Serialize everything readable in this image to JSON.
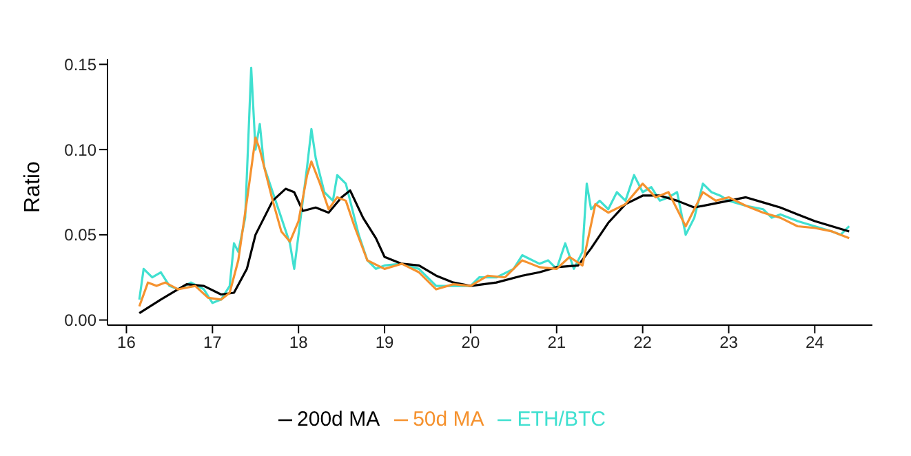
{
  "chart_data": {
    "type": "line",
    "ylabel": "Ratio",
    "xlim": [
      15.78,
      24.67
    ],
    "xticks": [
      16,
      17,
      18,
      19,
      20,
      21,
      22,
      23,
      24
    ],
    "ylim": [
      -0.003,
      0.153
    ],
    "yticks": [
      {
        "value": 0,
        "label": "0.00"
      },
      {
        "value": 0.05,
        "label": "0.05"
      },
      {
        "value": 0.1,
        "label": "0.10"
      },
      {
        "value": 0.15,
        "label": "0.15"
      }
    ],
    "grid": false,
    "legend": "bottom",
    "marker": "none",
    "line_style": "solid",
    "series": [
      {
        "name": "ETH/BTC",
        "color": "#40e0d0",
        "x": [
          16.15,
          16.2,
          16.3,
          16.4,
          16.5,
          16.6,
          16.75,
          16.9,
          17.0,
          17.1,
          17.2,
          17.25,
          17.3,
          17.38,
          17.45,
          17.5,
          17.55,
          17.6,
          17.7,
          17.8,
          17.9,
          17.95,
          18.0,
          18.1,
          18.15,
          18.2,
          18.3,
          18.4,
          18.45,
          18.55,
          18.6,
          18.7,
          18.8,
          18.9,
          19.0,
          19.2,
          19.4,
          19.6,
          19.8,
          20.0,
          20.1,
          20.3,
          20.5,
          20.6,
          20.8,
          20.9,
          21.0,
          21.1,
          21.2,
          21.3,
          21.35,
          21.4,
          21.5,
          21.6,
          21.7,
          21.8,
          21.9,
          22.0,
          22.1,
          22.2,
          22.3,
          22.4,
          22.5,
          22.6,
          22.7,
          22.8,
          22.9,
          23.0,
          23.2,
          23.4,
          23.5,
          23.6,
          23.8,
          24.0,
          24.2,
          24.3,
          24.4
        ],
        "values": [
          0.012,
          0.03,
          0.025,
          0.028,
          0.02,
          0.018,
          0.022,
          0.018,
          0.01,
          0.012,
          0.02,
          0.045,
          0.04,
          0.06,
          0.148,
          0.1,
          0.115,
          0.09,
          0.075,
          0.06,
          0.045,
          0.03,
          0.05,
          0.09,
          0.112,
          0.095,
          0.075,
          0.07,
          0.085,
          0.08,
          0.07,
          0.05,
          0.035,
          0.03,
          0.032,
          0.033,
          0.03,
          0.02,
          0.02,
          0.02,
          0.025,
          0.025,
          0.03,
          0.038,
          0.033,
          0.035,
          0.03,
          0.045,
          0.03,
          0.04,
          0.08,
          0.065,
          0.07,
          0.065,
          0.075,
          0.07,
          0.085,
          0.075,
          0.078,
          0.07,
          0.072,
          0.075,
          0.05,
          0.06,
          0.08,
          0.075,
          0.073,
          0.07,
          0.067,
          0.065,
          0.06,
          0.062,
          0.058,
          0.055,
          0.052,
          0.05,
          0.055
        ]
      },
      {
        "name": "200d MA",
        "color": "#000000",
        "x": [
          16.15,
          16.4,
          16.7,
          16.9,
          17.1,
          17.25,
          17.4,
          17.5,
          17.7,
          17.85,
          17.95,
          18.05,
          18.2,
          18.35,
          18.5,
          18.6,
          18.75,
          18.9,
          19.0,
          19.2,
          19.4,
          19.6,
          19.8,
          20.0,
          20.3,
          20.6,
          20.8,
          21.0,
          21.25,
          21.4,
          21.6,
          21.8,
          22.0,
          22.2,
          22.4,
          22.6,
          22.8,
          23.0,
          23.2,
          23.4,
          23.6,
          23.8,
          24.0,
          24.2,
          24.4
        ],
        "values": [
          0.004,
          0.012,
          0.021,
          0.02,
          0.015,
          0.016,
          0.03,
          0.05,
          0.07,
          0.077,
          0.075,
          0.064,
          0.066,
          0.063,
          0.072,
          0.076,
          0.06,
          0.048,
          0.037,
          0.033,
          0.032,
          0.026,
          0.022,
          0.02,
          0.022,
          0.026,
          0.028,
          0.031,
          0.032,
          0.042,
          0.057,
          0.068,
          0.073,
          0.073,
          0.07,
          0.066,
          0.068,
          0.07,
          0.072,
          0.069,
          0.066,
          0.062,
          0.058,
          0.055,
          0.052
        ]
      },
      {
        "name": "50d MA",
        "color": "#f5922f",
        "x": [
          16.15,
          16.25,
          16.35,
          16.45,
          16.6,
          16.8,
          16.95,
          17.1,
          17.2,
          17.3,
          17.4,
          17.5,
          17.55,
          17.7,
          17.8,
          17.9,
          18.0,
          18.1,
          18.15,
          18.25,
          18.35,
          18.45,
          18.55,
          18.65,
          18.8,
          19.0,
          19.2,
          19.4,
          19.6,
          19.8,
          20.0,
          20.2,
          20.4,
          20.6,
          20.8,
          21.0,
          21.15,
          21.3,
          21.45,
          21.6,
          21.8,
          22.0,
          22.15,
          22.3,
          22.5,
          22.7,
          22.85,
          23.0,
          23.2,
          23.4,
          23.6,
          23.8,
          24.0,
          24.2,
          24.4
        ],
        "values": [
          0.008,
          0.022,
          0.02,
          0.022,
          0.018,
          0.02,
          0.013,
          0.012,
          0.016,
          0.035,
          0.07,
          0.107,
          0.1,
          0.07,
          0.052,
          0.046,
          0.058,
          0.085,
          0.093,
          0.08,
          0.065,
          0.072,
          0.07,
          0.055,
          0.035,
          0.03,
          0.033,
          0.028,
          0.018,
          0.021,
          0.02,
          0.026,
          0.025,
          0.035,
          0.031,
          0.03,
          0.037,
          0.032,
          0.068,
          0.063,
          0.068,
          0.08,
          0.072,
          0.075,
          0.055,
          0.075,
          0.07,
          0.072,
          0.067,
          0.063,
          0.06,
          0.055,
          0.054,
          0.052,
          0.048
        ]
      }
    ]
  }
}
